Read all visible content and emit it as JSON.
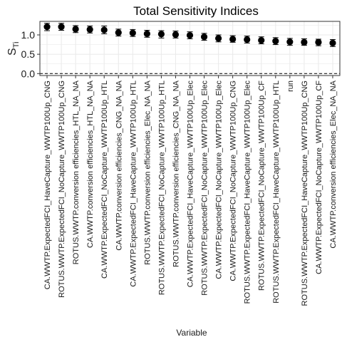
{
  "chart_data": {
    "type": "scatter",
    "title": "Total Sensitivity Indices",
    "xlabel": "Variable",
    "ylabel": {
      "main": "S",
      "subscript": "Ti"
    },
    "ylim": [
      -0.05,
      1.35
    ],
    "yticks": [
      0.0,
      0.5,
      1.0
    ],
    "ytick_labels": [
      "0.0",
      "0.5",
      "1.0"
    ],
    "grid": true,
    "reference_line": {
      "y": 0,
      "style": "dashed"
    },
    "colors": {
      "points": "#000000",
      "grid": "#ebebeb",
      "border": "#333333",
      "reference": "#000000"
    },
    "categories": [
      "CA.WWTP.ExpectedFCI_HaveCapture_WWTP100Up_CNG",
      "ROTUS.WWTP.ExpectedFCI_NoCapture_WWTP100Up_CNG",
      "ROTUS.WWTP.conversion efficiencies_HTL_NA_NA",
      "CA.WWTP.conversion efficiencies_HTL_NA_NA",
      "CA.WWTP.ExpectedFCI_NoCapture_WWTP100Up_HTL",
      "CA.WWTP.conversion efficiencies_CNG_NA_NA",
      "CA.WWTP.ExpectedFCI_HaveCapture_WWTP100Up_HTL",
      "ROTUS.WWTP.conversion efficiencies_Elec_NA_NA",
      "ROTUS.WWTP.ExpectedFCI_NoCapture_WWTP100Up_HTL",
      "ROTUS.WWTP.conversion efficiencies_CNG_NA_NA",
      "CA.WWTP.ExpectedFCI_HaveCapture_WWTP100Up_Elec",
      "ROTUS.WWTP.ExpectedFCI_NoCapture_WWTP100Up_Elec",
      "CA.WWTP.ExpectedFCI_NoCapture_WWTP100Up_Elec",
      "CA.WWTP.ExpectedFCI_NoCapture_WWTP100Up_CNG",
      "ROTUS.WWTP.ExpectedFCI_HaveCapture_WWTP100Up_Elec",
      "ROTUS.WWTP.ExpectedFCI_NoCapture_WWTP100Up_CF",
      "ROTUS.WWTP.ExpectedFCI_HaveCapture_WWTP100Up_HTL",
      "run",
      "ROTUS.WWTP.ExpectedFCI_HaveCapture_WWTP100Up_CNG",
      "CA.WWTP.ExpectedFCI_NoCapture_WWTP100Up_CF",
      "CA.WWTP.conversion efficiencies_Elec_NA_NA"
    ],
    "values": [
      1.21,
      1.21,
      1.15,
      1.14,
      1.13,
      1.06,
      1.05,
      1.03,
      1.02,
      1.01,
      0.99,
      0.95,
      0.91,
      0.89,
      0.88,
      0.86,
      0.84,
      0.82,
      0.81,
      0.81,
      0.79
    ],
    "error_low": [
      1.11,
      1.12,
      1.06,
      1.05,
      1.03,
      0.97,
      0.96,
      0.94,
      0.92,
      0.92,
      0.9,
      0.86,
      0.82,
      0.81,
      0.79,
      0.77,
      0.75,
      0.73,
      0.73,
      0.72,
      0.7
    ],
    "error_high": [
      1.3,
      1.3,
      1.24,
      1.23,
      1.23,
      1.15,
      1.14,
      1.12,
      1.11,
      1.1,
      1.08,
      1.04,
      1.0,
      0.98,
      0.97,
      0.95,
      0.93,
      0.91,
      0.9,
      0.89,
      0.88
    ]
  }
}
